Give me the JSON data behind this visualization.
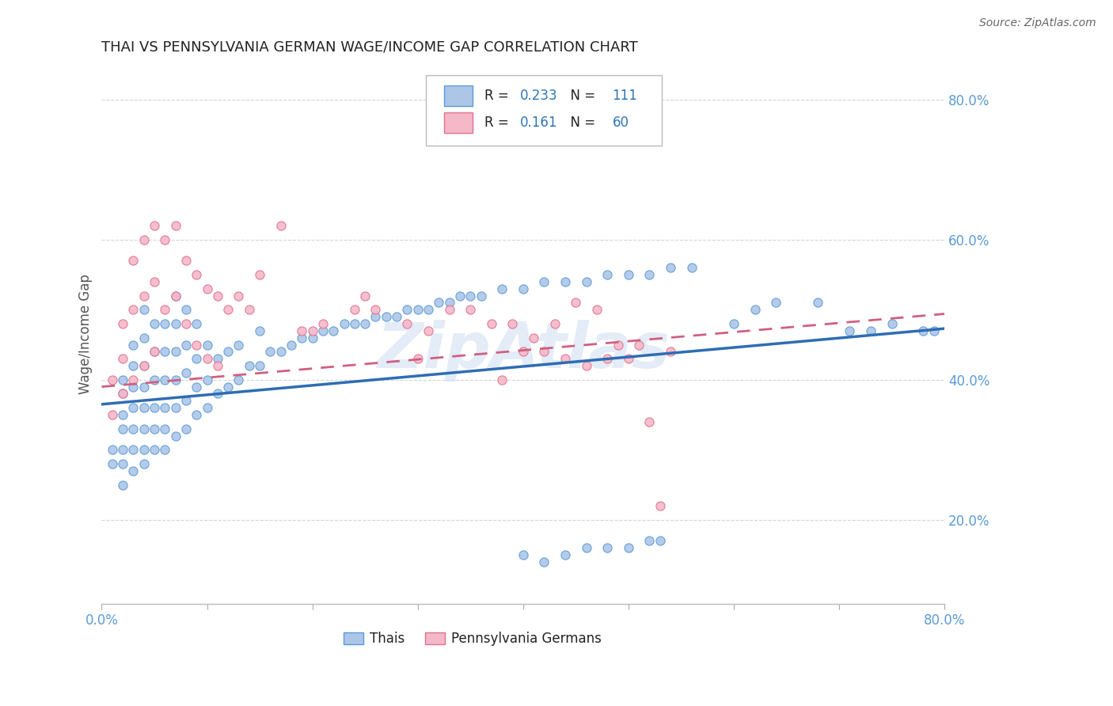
{
  "title": "THAI VS PENNSYLVANIA GERMAN WAGE/INCOME GAP CORRELATION CHART",
  "source_text": "Source: ZipAtlas.com",
  "ylabel": "Wage/Income Gap",
  "xlim": [
    0.0,
    0.8
  ],
  "ylim": [
    0.08,
    0.85
  ],
  "yticks": [
    0.2,
    0.4,
    0.6,
    0.8
  ],
  "ytick_labels": [
    "20.0%",
    "40.0%",
    "60.0%",
    "80.0%"
  ],
  "series1_label": "Thais",
  "series1_R": "0.233",
  "series1_N": "111",
  "series1_color": "#adc6e8",
  "series1_edge_color": "#5b9bd5",
  "series1_line_color": "#2e6db4",
  "series2_label": "Pennsylvania Germans",
  "series2_R": "0.161",
  "series2_N": "60",
  "series2_color": "#f4b8c8",
  "series2_edge_color": "#e07090",
  "series2_line_color": "#d06080",
  "watermark": "ZipAtlas",
  "background_color": "#ffffff",
  "axis_color": "#5b9bd5",
  "grid_color": "#cccccc",
  "legend_text_color": "#222222",
  "legend_value_color": "#2e75b6",
  "series1_x": [
    0.01,
    0.01,
    0.02,
    0.02,
    0.02,
    0.02,
    0.02,
    0.02,
    0.02,
    0.03,
    0.03,
    0.03,
    0.03,
    0.03,
    0.03,
    0.03,
    0.04,
    0.04,
    0.04,
    0.04,
    0.04,
    0.04,
    0.04,
    0.04,
    0.05,
    0.05,
    0.05,
    0.05,
    0.05,
    0.05,
    0.06,
    0.06,
    0.06,
    0.06,
    0.06,
    0.06,
    0.07,
    0.07,
    0.07,
    0.07,
    0.07,
    0.07,
    0.08,
    0.08,
    0.08,
    0.08,
    0.08,
    0.09,
    0.09,
    0.09,
    0.09,
    0.1,
    0.1,
    0.1,
    0.11,
    0.11,
    0.12,
    0.12,
    0.13,
    0.13,
    0.14,
    0.15,
    0.15,
    0.16,
    0.17,
    0.18,
    0.19,
    0.2,
    0.21,
    0.22,
    0.23,
    0.24,
    0.25,
    0.26,
    0.27,
    0.28,
    0.29,
    0.3,
    0.31,
    0.32,
    0.33,
    0.34,
    0.35,
    0.36,
    0.38,
    0.4,
    0.4,
    0.42,
    0.44,
    0.46,
    0.48,
    0.5,
    0.52,
    0.54,
    0.56,
    0.6,
    0.62,
    0.64,
    0.68,
    0.71,
    0.73,
    0.75,
    0.78,
    0.79,
    0.42,
    0.44,
    0.46,
    0.48,
    0.5,
    0.52,
    0.53
  ],
  "series1_y": [
    0.28,
    0.3,
    0.25,
    0.28,
    0.3,
    0.33,
    0.35,
    0.38,
    0.4,
    0.27,
    0.3,
    0.33,
    0.36,
    0.39,
    0.42,
    0.45,
    0.28,
    0.3,
    0.33,
    0.36,
    0.39,
    0.42,
    0.46,
    0.5,
    0.3,
    0.33,
    0.36,
    0.4,
    0.44,
    0.48,
    0.3,
    0.33,
    0.36,
    0.4,
    0.44,
    0.48,
    0.32,
    0.36,
    0.4,
    0.44,
    0.48,
    0.52,
    0.33,
    0.37,
    0.41,
    0.45,
    0.5,
    0.35,
    0.39,
    0.43,
    0.48,
    0.36,
    0.4,
    0.45,
    0.38,
    0.43,
    0.39,
    0.44,
    0.4,
    0.45,
    0.42,
    0.42,
    0.47,
    0.44,
    0.44,
    0.45,
    0.46,
    0.46,
    0.47,
    0.47,
    0.48,
    0.48,
    0.48,
    0.49,
    0.49,
    0.49,
    0.5,
    0.5,
    0.5,
    0.51,
    0.51,
    0.52,
    0.52,
    0.52,
    0.53,
    0.53,
    0.15,
    0.54,
    0.54,
    0.54,
    0.55,
    0.55,
    0.55,
    0.56,
    0.56,
    0.48,
    0.5,
    0.51,
    0.51,
    0.47,
    0.47,
    0.48,
    0.47,
    0.47,
    0.14,
    0.15,
    0.16,
    0.16,
    0.16,
    0.17,
    0.17
  ],
  "series2_x": [
    0.01,
    0.01,
    0.02,
    0.02,
    0.02,
    0.03,
    0.03,
    0.03,
    0.04,
    0.04,
    0.04,
    0.05,
    0.05,
    0.05,
    0.06,
    0.06,
    0.07,
    0.07,
    0.08,
    0.08,
    0.09,
    0.09,
    0.1,
    0.1,
    0.11,
    0.11,
    0.12,
    0.13,
    0.14,
    0.15,
    0.17,
    0.19,
    0.2,
    0.21,
    0.24,
    0.25,
    0.26,
    0.29,
    0.3,
    0.31,
    0.33,
    0.35,
    0.37,
    0.38,
    0.39,
    0.4,
    0.41,
    0.42,
    0.43,
    0.44,
    0.45,
    0.46,
    0.47,
    0.48,
    0.49,
    0.5,
    0.51,
    0.52,
    0.53,
    0.54
  ],
  "series2_y": [
    0.35,
    0.4,
    0.38,
    0.43,
    0.48,
    0.4,
    0.5,
    0.57,
    0.42,
    0.52,
    0.6,
    0.44,
    0.54,
    0.62,
    0.5,
    0.6,
    0.52,
    0.62,
    0.48,
    0.57,
    0.45,
    0.55,
    0.43,
    0.53,
    0.42,
    0.52,
    0.5,
    0.52,
    0.5,
    0.55,
    0.62,
    0.47,
    0.47,
    0.48,
    0.5,
    0.52,
    0.5,
    0.48,
    0.43,
    0.47,
    0.5,
    0.5,
    0.48,
    0.4,
    0.48,
    0.44,
    0.46,
    0.44,
    0.48,
    0.43,
    0.51,
    0.42,
    0.5,
    0.43,
    0.45,
    0.43,
    0.45,
    0.34,
    0.22,
    0.44
  ]
}
